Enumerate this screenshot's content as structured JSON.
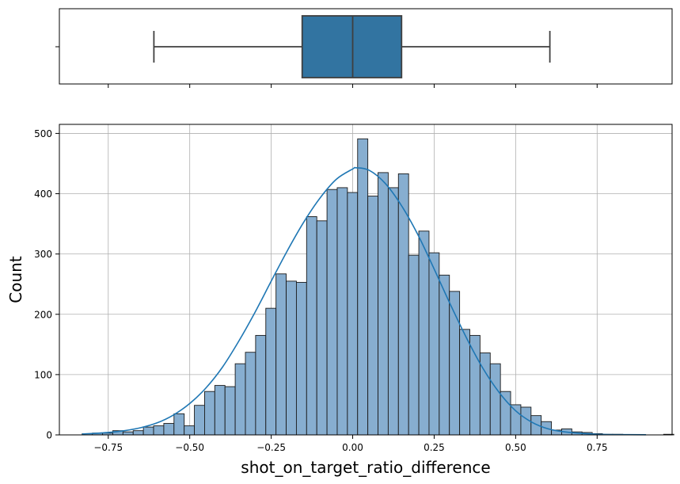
{
  "chart_data": [
    {
      "type": "box",
      "orientation": "horizontal",
      "whisker_low": -0.61,
      "q1": -0.155,
      "median": 0.0,
      "q3": 0.15,
      "whisker_high": 0.605,
      "xlim": [
        -0.9,
        0.98
      ],
      "xticks": [
        -0.75,
        -0.5,
        -0.25,
        0.0,
        0.25,
        0.5,
        0.75
      ],
      "color": "#3274a1",
      "edge_color": "#3f3f3f"
    },
    {
      "type": "bar",
      "subtype": "histogram",
      "xlabel": "shot_on_target_ratio_difference",
      "ylabel": "Count",
      "xlim": [
        -0.9,
        0.98
      ],
      "ylim": [
        0,
        515
      ],
      "xticks": [
        -0.75,
        -0.5,
        -0.25,
        0.0,
        0.25,
        0.5,
        0.75
      ],
      "xtick_labels": [
        "−0.75",
        "−0.50",
        "−0.25",
        "0.00",
        "0.25",
        "0.50",
        "0.75"
      ],
      "yticks": [
        0,
        100,
        200,
        300,
        400,
        500
      ],
      "ytick_labels": [
        "0",
        "100",
        "200",
        "300",
        "400",
        "500"
      ],
      "grid": true,
      "bin_start": -0.83,
      "bin_width": 0.0313,
      "values": [
        2,
        3,
        3,
        7,
        5,
        7,
        13,
        15,
        19,
        35,
        15,
        49,
        72,
        82,
        80,
        118,
        137,
        165,
        210,
        267,
        255,
        253,
        362,
        355,
        407,
        410,
        402,
        491,
        396,
        435,
        410,
        433,
        298,
        338,
        302,
        265,
        238,
        175,
        165,
        136,
        118,
        72,
        50,
        46,
        32,
        22,
        8,
        10,
        5,
        4,
        2,
        1,
        1,
        0,
        0,
        0,
        0,
        1
      ],
      "kde_points": [
        [
          -0.83,
          1.5
        ],
        [
          -0.75,
          4
        ],
        [
          -0.7,
          7
        ],
        [
          -0.65,
          12
        ],
        [
          -0.6,
          20
        ],
        [
          -0.55,
          33
        ],
        [
          -0.5,
          52
        ],
        [
          -0.45,
          78
        ],
        [
          -0.4,
          112
        ],
        [
          -0.35,
          155
        ],
        [
          -0.3,
          203
        ],
        [
          -0.25,
          255
        ],
        [
          -0.2,
          306
        ],
        [
          -0.15,
          353
        ],
        [
          -0.1,
          393
        ],
        [
          -0.05,
          424
        ],
        [
          0.0,
          441
        ],
        [
          0.01,
          443
        ],
        [
          0.05,
          439
        ],
        [
          0.1,
          417
        ],
        [
          0.15,
          380
        ],
        [
          0.2,
          332
        ],
        [
          0.25,
          275
        ],
        [
          0.3,
          216
        ],
        [
          0.35,
          160
        ],
        [
          0.4,
          110
        ],
        [
          0.45,
          70
        ],
        [
          0.5,
          40
        ],
        [
          0.55,
          21
        ],
        [
          0.6,
          10
        ],
        [
          0.65,
          5
        ],
        [
          0.7,
          2.5
        ],
        [
          0.75,
          1
        ],
        [
          0.8,
          0.5
        ],
        [
          0.9,
          0.3
        ]
      ],
      "bar_color": "#87aed0",
      "bar_edge": "#1a1a1a",
      "kde_color": "#1f77b4"
    }
  ]
}
